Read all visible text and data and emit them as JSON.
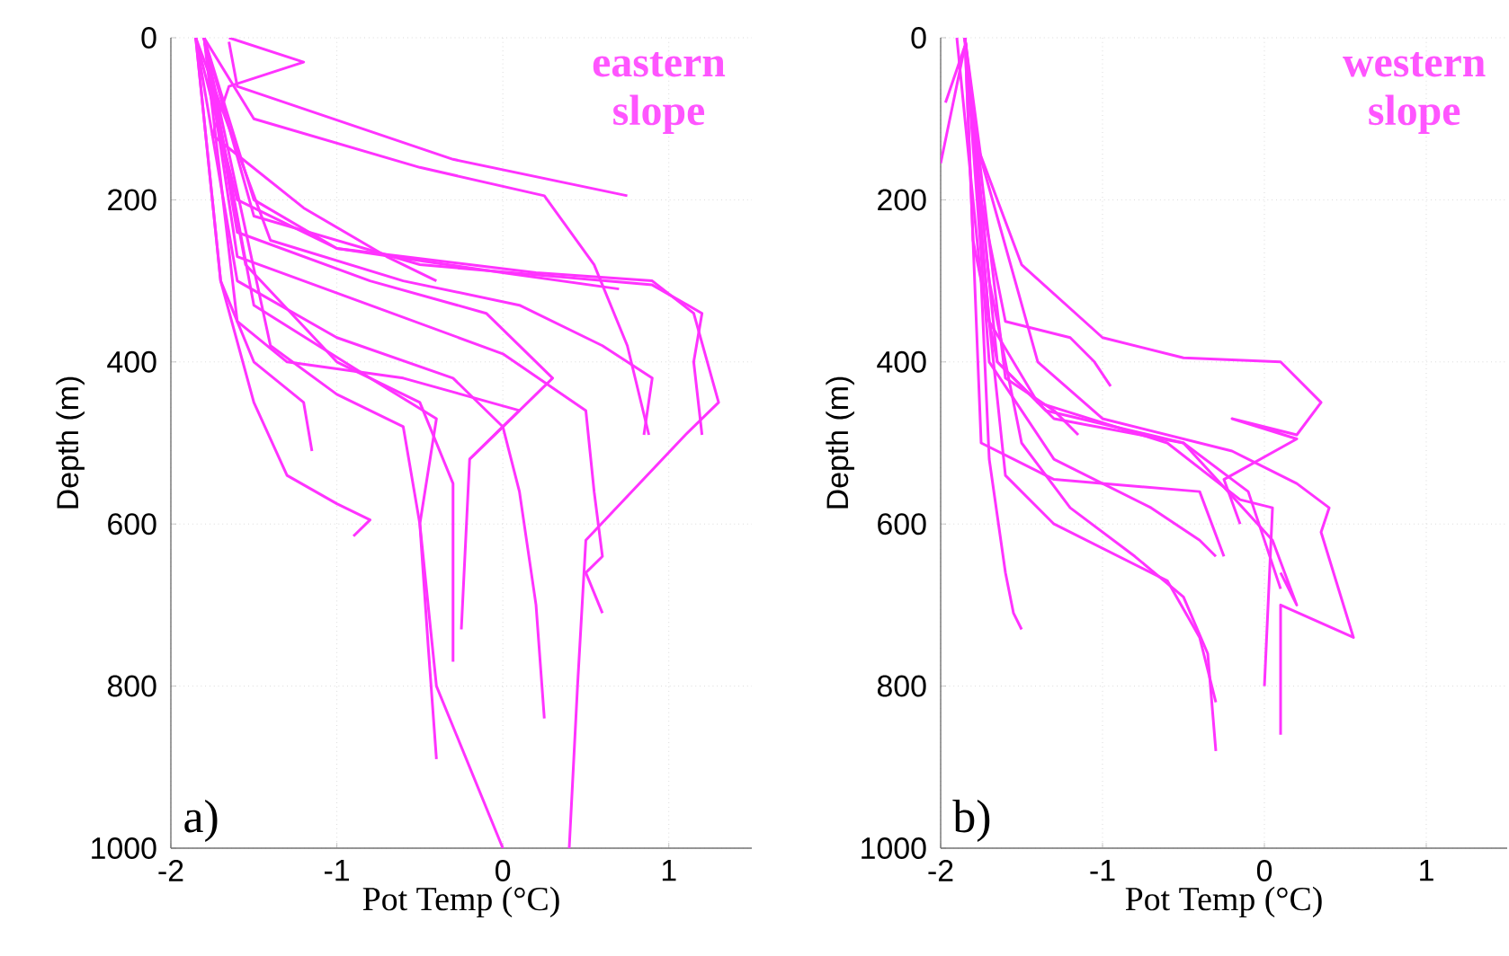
{
  "chart_data": [
    {
      "type": "line",
      "xlabel": "Pot Temp (°C)",
      "ylabel": "Depth (m)",
      "annotations": [
        "eastern slope",
        "a)"
      ],
      "xlim": [
        -2,
        1.5
      ],
      "ylim": [
        1000,
        0
      ],
      "xticks": [
        -2,
        -1,
        0,
        1
      ],
      "yticks": [
        0,
        200,
        400,
        600,
        800,
        1000
      ],
      "grid": true,
      "series": [
        {
          "color": "#ff33ff",
          "x": [
            -1.65,
            -1.6,
            -0.3,
            0.75
          ],
          "values": [
            5,
            60,
            150,
            195
          ]
        },
        {
          "color": "#ff33ff",
          "x": [
            -1.8,
            -1.5,
            -0.5,
            0.25,
            0.55,
            0.75,
            0.88
          ],
          "values": [
            0,
            100,
            160,
            195,
            280,
            380,
            490
          ]
        },
        {
          "color": "#ff33ff",
          "x": [
            -1.85,
            -1.6,
            -1.0,
            0.2,
            0.9,
            1.15,
            1.3,
            1.1,
            0.5,
            0.45,
            0.4
          ],
          "values": [
            0,
            200,
            260,
            290,
            300,
            340,
            450,
            490,
            620,
            800,
            1000
          ]
        },
        {
          "color": "#ff33ff",
          "x": [
            -1.8,
            -1.5,
            -0.5,
            0.9,
            1.2,
            1.15,
            1.2
          ],
          "values": [
            0,
            220,
            280,
            305,
            340,
            400,
            490
          ]
        },
        {
          "color": "#ff33ff",
          "x": [
            -1.8,
            -1.5,
            -0.8,
            -0.4,
            -0.5,
            -0.4,
            0.0
          ],
          "values": [
            0,
            330,
            420,
            470,
            600,
            800,
            1000
          ]
        },
        {
          "color": "#ff33ff",
          "x": [
            -1.85,
            -1.6,
            -1.0,
            -0.3,
            0.0,
            0.1,
            0.2,
            0.25
          ],
          "values": [
            0,
            300,
            370,
            420,
            480,
            560,
            700,
            840
          ]
        },
        {
          "color": "#ff33ff",
          "x": [
            -1.8,
            -1.4,
            -1.0,
            -0.6,
            -0.5,
            -0.45,
            -0.4
          ],
          "values": [
            0,
            380,
            440,
            480,
            600,
            750,
            890
          ]
        },
        {
          "color": "#ff33ff",
          "x": [
            -1.85,
            -1.7,
            -1.5,
            -1.2,
            -1.15
          ],
          "values": [
            0,
            300,
            400,
            450,
            510
          ]
        },
        {
          "color": "#ff33ff",
          "x": [
            -1.85,
            -1.7,
            -1.5,
            -1.3,
            -1.0,
            -0.8,
            -0.9
          ],
          "values": [
            0,
            300,
            450,
            540,
            575,
            595,
            615
          ]
        },
        {
          "color": "#ff33ff",
          "x": [
            -1.8,
            -1.6,
            -0.8,
            0.0,
            0.5,
            0.55,
            0.6,
            0.5,
            0.6
          ],
          "values": [
            0,
            270,
            330,
            390,
            460,
            560,
            640,
            660,
            710
          ]
        },
        {
          "color": "#ff33ff",
          "x": [
            -1.8,
            -1.55,
            -1.0,
            -0.5,
            -0.3,
            -0.3
          ],
          "values": [
            0,
            280,
            400,
            450,
            550,
            770
          ]
        },
        {
          "color": "#ff33ff",
          "x": [
            -1.8,
            -1.6,
            -0.8,
            -0.1,
            0.3,
            -0.2,
            -0.25
          ],
          "values": [
            0,
            240,
            300,
            340,
            420,
            520,
            730
          ]
        },
        {
          "color": "#ff33ff",
          "x": [
            -1.65,
            -1.2,
            -1.65,
            -1.75,
            -1.2,
            -0.7,
            -0.4
          ],
          "values": [
            0,
            30,
            60,
            120,
            210,
            270,
            300
          ]
        },
        {
          "color": "#ff33ff",
          "x": [
            -1.8,
            -1.5,
            -1.0,
            0.0,
            0.7
          ],
          "values": [
            0,
            200,
            260,
            290,
            310
          ]
        },
        {
          "color": "#ff33ff",
          "x": [
            -1.85,
            -1.4,
            -0.6,
            0.1,
            0.6,
            0.9,
            0.85
          ],
          "values": [
            0,
            250,
            300,
            330,
            380,
            420,
            490
          ]
        },
        {
          "color": "#ff33ff",
          "x": [
            -1.8,
            -1.6,
            -1.3,
            -0.6,
            0.1,
            -0.2
          ],
          "values": [
            0,
            350,
            400,
            420,
            460,
            520
          ]
        }
      ]
    },
    {
      "type": "line",
      "xlabel": "Pot Temp (°C)",
      "ylabel": "Depth (m)",
      "annotations": [
        "western slope",
        "b)"
      ],
      "xlim": [
        -2,
        1.5
      ],
      "ylim": [
        1000,
        0
      ],
      "xticks": [
        -2,
        -1,
        0,
        1
      ],
      "yticks": [
        0,
        200,
        400,
        600,
        800,
        1000
      ],
      "grid": true,
      "series": [
        {
          "color": "#ff33ff",
          "x": [
            -1.85,
            -1.75,
            -1.4,
            -1.0,
            -0.2,
            0.2,
            0.4,
            0.35,
            0.55,
            0.1,
            0.1
          ],
          "values": [
            0,
            150,
            400,
            470,
            510,
            550,
            580,
            610,
            740,
            700,
            860
          ]
        },
        {
          "color": "#ff33ff",
          "x": [
            -1.85,
            -1.8,
            -1.5,
            -1.0,
            -0.5,
            0.1,
            0.35,
            0.2,
            -0.2,
            0.2,
            -0.25,
            -0.15
          ],
          "values": [
            0,
            120,
            280,
            370,
            395,
            400,
            450,
            490,
            470,
            495,
            545,
            600
          ]
        },
        {
          "color": "#ff33ff",
          "x": [
            -1.85,
            -1.75,
            -1.6,
            -1.2,
            -1.05,
            -0.95
          ],
          "values": [
            0,
            200,
            350,
            370,
            400,
            430
          ]
        },
        {
          "color": "#ff33ff",
          "x": [
            -1.9,
            -1.75,
            -1.7,
            -1.6,
            -1.55,
            -1.5
          ],
          "values": [
            0,
            300,
            520,
            660,
            710,
            730
          ]
        },
        {
          "color": "#ff33ff",
          "x": [
            -1.85,
            -1.7,
            -1.5,
            -1.2,
            -0.8,
            -0.5,
            -0.35,
            -0.3
          ],
          "values": [
            0,
            300,
            500,
            580,
            640,
            690,
            760,
            880
          ]
        },
        {
          "color": "#ff33ff",
          "x": [
            -1.85,
            -1.7,
            -1.6,
            -1.3,
            -0.6,
            -0.4,
            -0.3
          ],
          "values": [
            0,
            350,
            540,
            600,
            670,
            740,
            820
          ]
        },
        {
          "color": "#ff33ff",
          "x": [
            -1.85,
            -1.7,
            -1.4,
            -0.6,
            -0.15,
            0.05,
            0.0
          ],
          "values": [
            0,
            350,
            450,
            500,
            570,
            580,
            800
          ]
        },
        {
          "color": "#ff33ff",
          "x": [
            -1.85,
            -1.65,
            -1.3,
            -0.5,
            0.05,
            0.2,
            0.1
          ],
          "values": [
            0,
            400,
            470,
            500,
            620,
            700,
            660
          ]
        },
        {
          "color": "#ff33ff",
          "x": [
            -1.85,
            -1.7,
            -1.3,
            -0.7,
            -0.4,
            -0.3
          ],
          "values": [
            0,
            400,
            520,
            580,
            620,
            640
          ]
        },
        {
          "color": "#ff33ff",
          "x": [
            -1.85,
            -1.6,
            -1.3,
            -1.15
          ],
          "values": [
            0,
            420,
            460,
            490
          ]
        },
        {
          "color": "#ff33ff",
          "x": [
            -1.85,
            -1.75,
            -1.3,
            -0.4,
            -0.25
          ],
          "values": [
            0,
            500,
            545,
            560,
            640
          ]
        },
        {
          "color": "#ff33ff",
          "x": [
            -1.85,
            -2.0
          ],
          "values": [
            10,
            155
          ]
        },
        {
          "color": "#ff33ff",
          "x": [
            -1.85,
            -1.97
          ],
          "values": [
            10,
            80
          ]
        },
        {
          "color": "#ff33ff",
          "x": [
            -1.85,
            -1.8,
            -1.65,
            -1.35,
            -0.5,
            -0.1,
            0.1
          ],
          "values": [
            0,
            250,
            400,
            460,
            500,
            560,
            680
          ]
        }
      ]
    }
  ]
}
